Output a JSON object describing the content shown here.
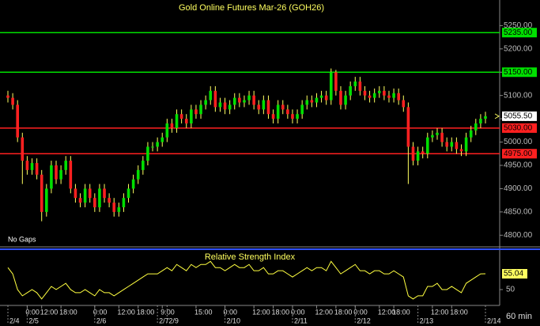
{
  "chart_data": {
    "type": "candlestick",
    "title": "Gold Online Futures Mar-26 (GOH26)",
    "note": "No Gaps",
    "timeframe": "60 min",
    "ylim": [
      4775,
      5305
    ],
    "yticks": [
      {
        "value": 4800,
        "label": "4800.00"
      },
      {
        "value": 4850,
        "label": "4850.00"
      },
      {
        "value": 4900,
        "label": "4900.00"
      },
      {
        "value": 4950,
        "label": "4950.00"
      },
      {
        "value": 5000,
        "label": "5000.00"
      },
      {
        "value": 5050,
        "label": "5050.00"
      },
      {
        "value": 5100,
        "label": "5100.00"
      },
      {
        "value": 5150,
        "label": "5150.00"
      },
      {
        "value": 5200,
        "label": "5200.00"
      },
      {
        "value": 5250,
        "label": "5250.00"
      }
    ],
    "up_color": "#00e000",
    "down_color": "#ff2020",
    "wick_color": "#ffff60",
    "open": [
      5100,
      5095,
      5080,
      5010,
      4960,
      4940,
      4955,
      4930,
      4850,
      4900,
      4950,
      4920,
      4940,
      4960,
      4900,
      4880,
      4870,
      4900,
      4880,
      4860,
      4900,
      4880,
      4870,
      4850,
      4860,
      4880,
      4900,
      4920,
      4940,
      4960,
      4990,
      4990,
      5000,
      5010,
      5040,
      5030,
      5060,
      5050,
      5040,
      5070,
      5060,
      5080,
      5090,
      5110,
      5075,
      5085,
      5070,
      5080,
      5095,
      5085,
      5090,
      5100,
      5080,
      5070,
      5090,
      5060,
      5050,
      5080,
      5070,
      5060,
      5050,
      5060,
      5080,
      5090,
      5085,
      5095,
      5100,
      5090,
      5150,
      5110,
      5080,
      5100,
      5120,
      5130,
      5110,
      5100,
      5095,
      5105,
      5110,
      5100,
      5095,
      5105,
      5090,
      5075,
      4990,
      4960,
      4980,
      4975,
      5010,
      5015,
      5020,
      5000,
      4990,
      5000,
      4985,
      4980,
      5010,
      5025,
      5040,
      5050
    ],
    "high": [
      5110,
      5105,
      5090,
      5020,
      4970,
      4965,
      4965,
      4940,
      4910,
      4960,
      4960,
      4950,
      4970,
      4970,
      4910,
      4890,
      4910,
      4910,
      4890,
      4910,
      4910,
      4890,
      4880,
      4870,
      4890,
      4910,
      4930,
      4950,
      4970,
      5000,
      5000,
      5010,
      5020,
      5050,
      5050,
      5070,
      5070,
      5060,
      5080,
      5080,
      5090,
      5100,
      5120,
      5120,
      5095,
      5095,
      5090,
      5105,
      5105,
      5100,
      5110,
      5110,
      5090,
      5100,
      5100,
      5070,
      5090,
      5090,
      5080,
      5070,
      5070,
      5090,
      5100,
      5100,
      5105,
      5110,
      5110,
      5158,
      5155,
      5120,
      5110,
      5130,
      5140,
      5140,
      5120,
      5110,
      5115,
      5120,
      5120,
      5110,
      5115,
      5115,
      5100,
      5085,
      5000,
      4990,
      4990,
      5020,
      5025,
      5030,
      5030,
      5010,
      5010,
      5010,
      4995,
      5020,
      5035,
      5050,
      5060,
      5065
    ],
    "low": [
      5085,
      5070,
      5000,
      4910,
      4930,
      4930,
      4920,
      4830,
      4840,
      4890,
      4910,
      4910,
      4930,
      4890,
      4870,
      4860,
      4860,
      4870,
      4850,
      4850,
      4870,
      4860,
      4840,
      4840,
      4850,
      4870,
      4890,
      4910,
      4930,
      4950,
      4980,
      4980,
      4990,
      5000,
      5020,
      5020,
      5040,
      5030,
      5030,
      5050,
      5050,
      5070,
      5080,
      5065,
      5065,
      5060,
      5060,
      5070,
      5075,
      5075,
      5080,
      5070,
      5060,
      5060,
      5050,
      5040,
      5040,
      5060,
      5050,
      5040,
      5040,
      5050,
      5070,
      5075,
      5075,
      5085,
      5080,
      5080,
      5100,
      5070,
      5070,
      5090,
      5110,
      5100,
      5090,
      5085,
      5085,
      5095,
      5090,
      5085,
      5085,
      5080,
      5065,
      4910,
      4950,
      4950,
      4965,
      4965,
      5000,
      5005,
      4990,
      4980,
      4980,
      4975,
      4970,
      4970,
      5000,
      5015,
      5030,
      5040
    ],
    "close": [
      5095,
      5080,
      5010,
      4960,
      4940,
      4955,
      4930,
      4850,
      4900,
      4950,
      4920,
      4940,
      4960,
      4900,
      4880,
      4870,
      4900,
      4880,
      4860,
      4900,
      4880,
      4870,
      4850,
      4860,
      4880,
      4900,
      4920,
      4940,
      4960,
      4990,
      4990,
      5000,
      5010,
      5040,
      5030,
      5060,
      5050,
      5040,
      5070,
      5060,
      5080,
      5090,
      5110,
      5075,
      5085,
      5070,
      5080,
      5095,
      5085,
      5090,
      5100,
      5080,
      5070,
      5090,
      5060,
      5050,
      5080,
      5070,
      5060,
      5050,
      5060,
      5080,
      5090,
      5085,
      5095,
      5100,
      5090,
      5150,
      5110,
      5080,
      5100,
      5120,
      5130,
      5110,
      5100,
      5095,
      5105,
      5110,
      5100,
      5095,
      5105,
      5090,
      5075,
      4990,
      4960,
      4980,
      4975,
      5010,
      5015,
      5020,
      5000,
      4990,
      5000,
      4985,
      4980,
      5010,
      5025,
      5040,
      5050,
      5055.5
    ],
    "last_price": {
      "value": 5055.5,
      "label": "5055.50"
    },
    "levels": [
      {
        "value": 5235,
        "label": "5235.00",
        "color": "#00e000"
      },
      {
        "value": 5150,
        "label": "5150.00",
        "color": "#00e000"
      },
      {
        "value": 5030,
        "label": "5030.00",
        "color": "#ff2020"
      },
      {
        "value": 4975,
        "label": "4975.00",
        "color": "#ff2020"
      }
    ],
    "rsi_title": "Relative Strength Index",
    "rsi_color": "#ffff40",
    "rsi": [
      57,
      55,
      50,
      48,
      49,
      50,
      49,
      47,
      49,
      51,
      50,
      51,
      52,
      50,
      49,
      49,
      50,
      49,
      48,
      50,
      49,
      49,
      48,
      49,
      50,
      51,
      52,
      53,
      54,
      55,
      55,
      55,
      56,
      57,
      56,
      58,
      57,
      56,
      58,
      57,
      58,
      58,
      59,
      57,
      57,
      56,
      57,
      58,
      57,
      57,
      58,
      56,
      56,
      57,
      55,
      55,
      56,
      56,
      55,
      54,
      55,
      56,
      57,
      56,
      57,
      57,
      56,
      59,
      57,
      55,
      56,
      57,
      58,
      56,
      56,
      55,
      56,
      56,
      55,
      55,
      56,
      55,
      54,
      48,
      47,
      48,
      48,
      51,
      51,
      52,
      50,
      50,
      51,
      50,
      49,
      52,
      53,
      54,
      55,
      55.04
    ],
    "rsi_ylim": [
      45.7,
      62.1
    ],
    "rsi_yticks": [
      50
    ],
    "xticks": [
      {
        "value": 4,
        "label": "0:00"
      },
      {
        "value": 7,
        "label": "12:00"
      },
      {
        "value": 11,
        "label": "18:00"
      },
      {
        "value": 18,
        "label": "0:00"
      },
      {
        "value": 23,
        "label": "12:00"
      },
      {
        "value": 27,
        "label": "18:00"
      },
      {
        "value": 32,
        "label": "9:00"
      },
      {
        "value": 39,
        "label": "15:00"
      },
      {
        "value": 45,
        "label": "0:00"
      },
      {
        "value": 51,
        "label": "12:00"
      },
      {
        "value": 55,
        "label": "18:00"
      },
      {
        "value": 59,
        "label": "0:00"
      },
      {
        "value": 64,
        "label": "12:00"
      },
      {
        "value": 68,
        "label": "18:00"
      },
      {
        "value": 72,
        "label": "0:00"
      },
      {
        "value": 77,
        "label": "12:00"
      },
      {
        "value": 80,
        "label": "18:00"
      },
      {
        "value": 88,
        "label": "12:00"
      },
      {
        "value": 92,
        "label": "18:00"
      }
    ],
    "date_ticks": [
      {
        "value": 0,
        "label": "2/4"
      },
      {
        "value": 4,
        "label": "2/5"
      },
      {
        "value": 18,
        "label": "2/6"
      },
      {
        "value": 31,
        "label": "2/7"
      },
      {
        "value": 33,
        "label": "2/9"
      },
      {
        "value": 45,
        "label": "2/10"
      },
      {
        "value": 59,
        "label": "2/11"
      },
      {
        "value": 72,
        "label": "2/12"
      },
      {
        "value": 85,
        "label": "2/13"
      },
      {
        "value": 99,
        "label": "2/14"
      }
    ]
  }
}
